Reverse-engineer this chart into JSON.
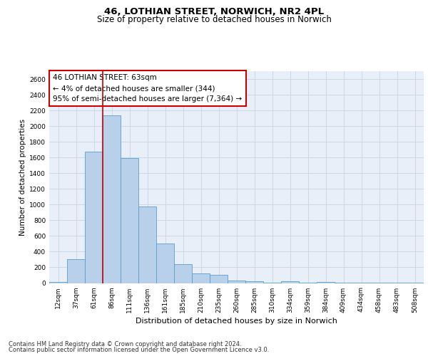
{
  "title_line1": "46, LOTHIAN STREET, NORWICH, NR2 4PL",
  "title_line2": "Size of property relative to detached houses in Norwich",
  "xlabel": "Distribution of detached houses by size in Norwich",
  "ylabel": "Number of detached properties",
  "categories": [
    "12sqm",
    "37sqm",
    "61sqm",
    "86sqm",
    "111sqm",
    "136sqm",
    "161sqm",
    "185sqm",
    "210sqm",
    "235sqm",
    "260sqm",
    "285sqm",
    "310sqm",
    "334sqm",
    "359sqm",
    "384sqm",
    "409sqm",
    "434sqm",
    "458sqm",
    "483sqm",
    "508sqm"
  ],
  "values": [
    15,
    300,
    1670,
    2140,
    1595,
    975,
    500,
    245,
    125,
    100,
    35,
    20,
    5,
    20,
    5,
    10,
    5,
    5,
    5,
    5,
    5
  ],
  "bar_color": "#b8d0ea",
  "bar_edge_color": "#5a9ec8",
  "vline_color": "#cc0000",
  "vline_index": 2,
  "annotation_text": "46 LOTHIAN STREET: 63sqm\n← 4% of detached houses are smaller (344)\n95% of semi-detached houses are larger (7,364) →",
  "annotation_box_color": "#ffffff",
  "annotation_box_edge_color": "#cc0000",
  "ylim": [
    0,
    2700
  ],
  "yticks": [
    0,
    200,
    400,
    600,
    800,
    1000,
    1200,
    1400,
    1600,
    1800,
    2000,
    2200,
    2400,
    2600
  ],
  "grid_color": "#ccd8e8",
  "background_color": "#e8eff8",
  "footer_line1": "Contains HM Land Registry data © Crown copyright and database right 2024.",
  "footer_line2": "Contains public sector information licensed under the Open Government Licence v3.0.",
  "title_fontsize": 9.5,
  "subtitle_fontsize": 8.5,
  "xlabel_fontsize": 8,
  "ylabel_fontsize": 7.5,
  "tick_fontsize": 6.5,
  "annotation_fontsize": 7.5,
  "footer_fontsize": 6
}
